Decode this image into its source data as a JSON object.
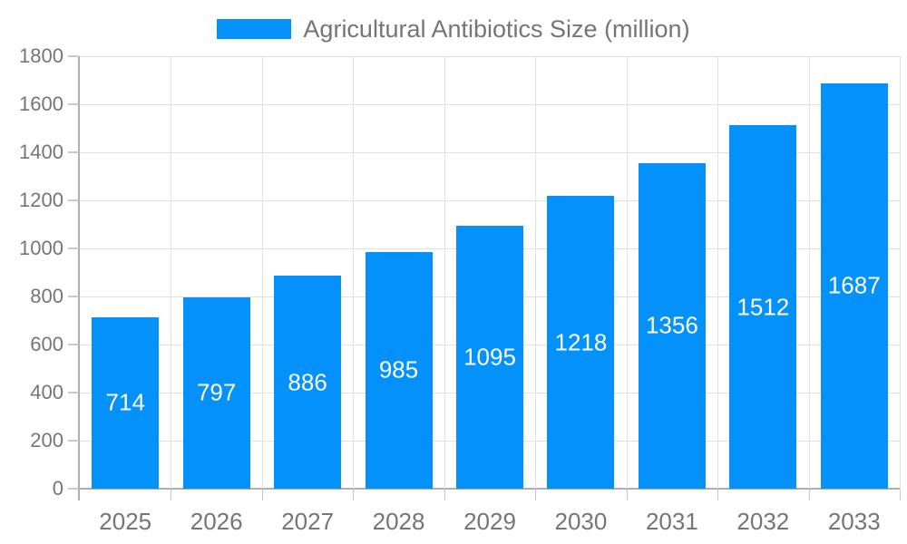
{
  "chart_data": {
    "type": "bar",
    "title": "",
    "categories": [
      "2025",
      "2026",
      "2027",
      "2028",
      "2029",
      "2030",
      "2031",
      "2032",
      "2033"
    ],
    "series": [
      {
        "name": "Agricultural Antibiotics Size (million)",
        "color": "#0591fa",
        "values": [
          714,
          797,
          886,
          985,
          1095,
          1218,
          1356,
          1512,
          1687
        ]
      }
    ],
    "value_labels": [
      714,
      797,
      886,
      985,
      1095,
      1218,
      1356,
      1512,
      1687
    ],
    "xlabel": "",
    "ylabel": "",
    "ylim": [
      0,
      1800
    ],
    "yticks": [
      0,
      200,
      400,
      600,
      800,
      1000,
      1200,
      1400,
      1600,
      1800
    ],
    "grid": true,
    "legend_position": "top-center",
    "value_label_position": "inside-center",
    "colors": {
      "bar": "#0591fa",
      "gridline": "#e0e0e0",
      "tick": "#c9c9c9",
      "axis_line": "#aeaeae",
      "axis_text": "#757575",
      "value_text": "#ffffff",
      "background": "#ffffff"
    }
  }
}
